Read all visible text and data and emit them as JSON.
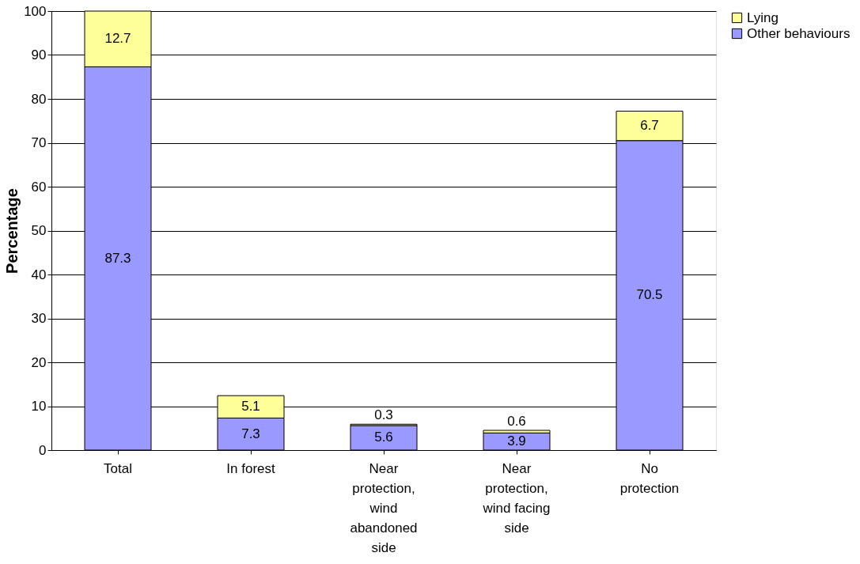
{
  "chart_data": {
    "type": "bar",
    "stacked": true,
    "ylabel": "Percentage",
    "categories": [
      "Total",
      "In forest",
      "Near protection, wind abandoned side",
      "Near protection, wind facing side",
      "No protection"
    ],
    "series": [
      {
        "name": "Other behaviours",
        "color": "#9999ff",
        "values": [
          87.3,
          7.3,
          5.6,
          3.9,
          70.5
        ]
      },
      {
        "name": "Lying",
        "color": "#ffff99",
        "values": [
          12.7,
          5.1,
          0.3,
          0.6,
          6.7
        ]
      }
    ],
    "ylim": [
      0,
      100
    ],
    "yticks": [
      0,
      10,
      20,
      30,
      40,
      50,
      60,
      70,
      80,
      90,
      100
    ],
    "grid": "y",
    "legend": "right",
    "data_labels": true
  }
}
